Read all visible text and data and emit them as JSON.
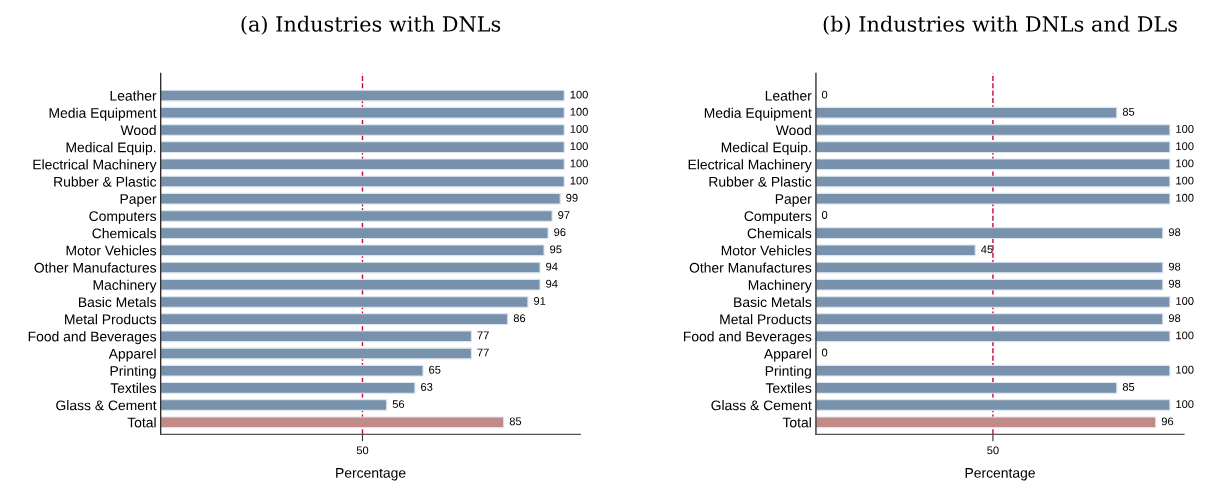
{
  "chart_data": [
    {
      "type": "bar",
      "orientation": "horizontal",
      "title": "(a) Industries with DNLs",
      "xlabel": "Percentage",
      "categories": [
        "Leather",
        "Media Equipment",
        "Wood",
        "Medical Equip.",
        "Electrical Machinery",
        "Rubber & Plastic",
        "Paper",
        "Computers",
        "Chemicals",
        "Motor Vehicles",
        "Other Manufactures",
        "Machinery",
        "Basic Metals",
        "Metal Products",
        "Food and Beverages",
        "Apparel",
        "Printing",
        "Textiles",
        "Glass & Cement",
        "Total"
      ],
      "values": [
        100,
        100,
        100,
        100,
        100,
        100,
        99,
        97,
        96,
        95,
        94,
        94,
        91,
        86,
        77,
        77,
        65,
        63,
        56,
        85
      ],
      "colors": [
        "#7892ad",
        "#7892ad",
        "#7892ad",
        "#7892ad",
        "#7892ad",
        "#7892ad",
        "#7892ad",
        "#7892ad",
        "#7892ad",
        "#7892ad",
        "#7892ad",
        "#7892ad",
        "#7892ad",
        "#7892ad",
        "#7892ad",
        "#7892ad",
        "#7892ad",
        "#7892ad",
        "#7892ad",
        "#c08a88"
      ],
      "xlim": [
        0,
        104
      ],
      "xticks": [
        50
      ],
      "data_labels": true,
      "grid": false,
      "legend": false,
      "ref_lines": [
        {
          "axis": "x",
          "value": 50,
          "color": "#cc0033",
          "line_style": "dashed"
        }
      ]
    },
    {
      "type": "bar",
      "orientation": "horizontal",
      "title": "(b) Industries with DNLs and DLs",
      "xlabel": "Percentage",
      "categories": [
        "Leather",
        "Media Equipment",
        "Wood",
        "Medical Equip.",
        "Electrical Machinery",
        "Rubber & Plastic",
        "Paper",
        "Computers",
        "Chemicals",
        "Motor Vehicles",
        "Other Manufactures",
        "Machinery",
        "Basic Metals",
        "Metal Products",
        "Food and Beverages",
        "Apparel",
        "Printing",
        "Textiles",
        "Glass & Cement",
        "Total"
      ],
      "values": [
        0,
        85,
        100,
        100,
        100,
        100,
        100,
        0,
        98,
        45,
        98,
        98,
        100,
        98,
        100,
        0,
        100,
        85,
        100,
        96
      ],
      "colors": [
        "#7892ad",
        "#7892ad",
        "#7892ad",
        "#7892ad",
        "#7892ad",
        "#7892ad",
        "#7892ad",
        "#7892ad",
        "#7892ad",
        "#7892ad",
        "#7892ad",
        "#7892ad",
        "#7892ad",
        "#7892ad",
        "#7892ad",
        "#7892ad",
        "#7892ad",
        "#7892ad",
        "#7892ad",
        "#c08a88"
      ],
      "xlim": [
        0,
        104
      ],
      "xticks": [
        50
      ],
      "data_labels": true,
      "grid": false,
      "legend": false,
      "ref_lines": [
        {
          "axis": "x",
          "value": 50,
          "color": "#cc0033",
          "line_style": "dashed"
        }
      ]
    }
  ]
}
